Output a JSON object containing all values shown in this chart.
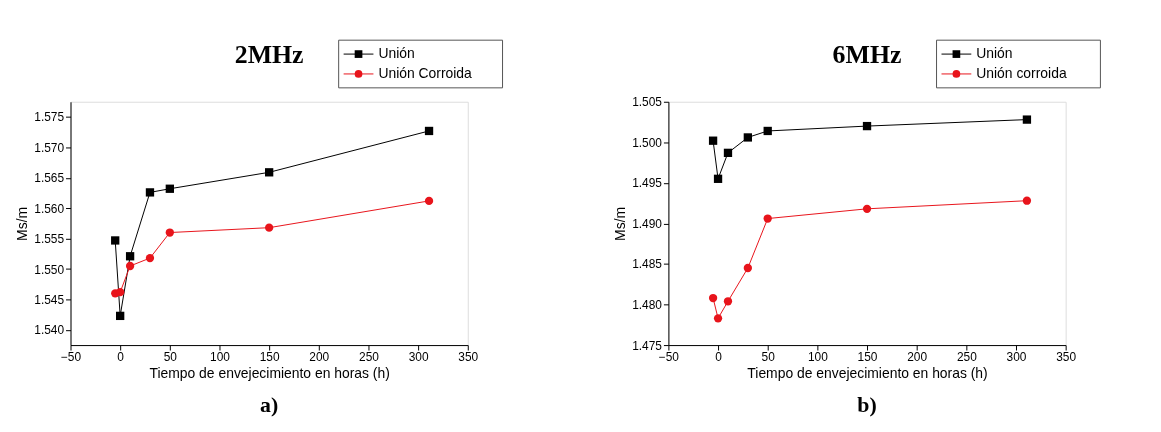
{
  "chart_data": [
    {
      "type": "line",
      "title": "2MHz",
      "xlabel": "Tiempo de envejecimiento en horas (h)",
      "ylabel": "Ms/m",
      "annotations": [
        "a)"
      ],
      "x": [
        -5,
        0,
        10,
        30,
        50,
        150,
        311
      ],
      "series": [
        {
          "name": "Unión",
          "color": "#000000",
          "marker": "square",
          "values": [
            1.5547,
            1.5423,
            1.5521,
            1.5626,
            1.5632,
            1.5659,
            1.5727
          ]
        },
        {
          "name": "Unión Corroida",
          "color": "#e8141b",
          "marker": "circle",
          "values": [
            1.546,
            1.5462,
            1.5505,
            1.5518,
            1.556,
            1.5568,
            1.5612
          ]
        }
      ],
      "xlim": [
        -50,
        350
      ],
      "xticks": [
        -50,
        0,
        50,
        100,
        150,
        200,
        250,
        300,
        350
      ],
      "ylim": [
        1.5375,
        1.5775
      ],
      "yticks": [
        {
          "value": 1.54,
          "label": "1.540"
        },
        1.545,
        {
          "value": 1.55,
          "label": "1.550"
        },
        1.555,
        {
          "value": 1.56,
          "label": "1.560"
        },
        1.565,
        {
          "value": 1.57,
          "label": "1.570"
        },
        1.575
      ],
      "grid": false,
      "legend": "top right"
    },
    {
      "type": "line",
      "title": "6MHz",
      "xlabel": "Tiempo de envejecimiento en horas (h)",
      "ylabel": "Ms/m",
      "annotations": [
        "b)"
      ],
      "x": [
        -5,
        0,
        10,
        30,
        50,
        150,
        311
      ],
      "series": [
        {
          "name": "Unión",
          "color": "#000000",
          "marker": "square",
          "values": [
            1.5002,
            1.4955,
            1.4987,
            1.5006,
            1.5014,
            1.502,
            1.5028
          ]
        },
        {
          "name": "Unión corroida",
          "color": "#e8141b",
          "marker": "circle",
          "values": [
            1.4808,
            1.4783,
            1.4804,
            1.4845,
            1.4906,
            1.4918,
            1.4928
          ]
        }
      ],
      "xlim": [
        -50,
        350
      ],
      "xticks": [
        -50,
        0,
        50,
        100,
        150,
        200,
        250,
        300,
        350
      ],
      "ylim": [
        1.475,
        1.505
      ],
      "yticks": [
        1.475,
        {
          "value": 1.48,
          "label": "1.480"
        },
        1.485,
        {
          "value": 1.49,
          "label": "1.490"
        },
        1.495,
        {
          "value": 1.5,
          "label": "1.500"
        },
        1.505
      ],
      "grid": false,
      "legend": "top right"
    }
  ]
}
